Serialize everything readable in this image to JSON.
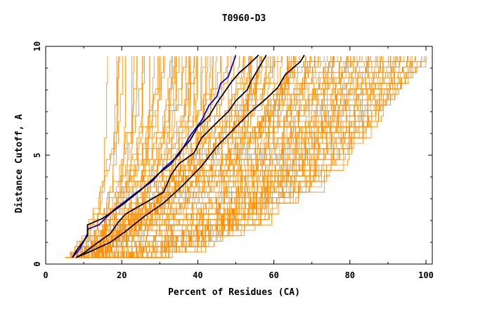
{
  "chart_data": {
    "type": "line",
    "title": "T0960-D3",
    "xlabel": "Percent of Residues (CA)",
    "ylabel": "Distance Cutoff, A",
    "xlim": [
      0,
      100
    ],
    "ylim": [
      0,
      10
    ],
    "x_ticks": [
      0,
      20,
      40,
      60,
      80,
      100
    ],
    "x_tick_labels": [
      "0",
      "20",
      "40",
      "60",
      "80",
      "100"
    ],
    "y_ticks": [
      0,
      5,
      10
    ],
    "y_tick_labels": [
      "0",
      "5",
      "10"
    ],
    "grid": false,
    "legend": "none",
    "colors": {
      "background_series": "#ff8c00",
      "highlight_blue": "#0000ff",
      "highlight_black": "#000000",
      "axis": "#000000"
    },
    "highlighted_series": [
      {
        "color": "#0000ff",
        "x": [
          7,
          9,
          11,
          11,
          14,
          18,
          24,
          28,
          31,
          35,
          36,
          38,
          41,
          43,
          45,
          46,
          48,
          49,
          50
        ],
        "y": [
          0.3,
          0.7,
          1.4,
          1.6,
          1.8,
          2.5,
          3.3,
          3.8,
          4.4,
          5.0,
          5.3,
          5.9,
          6.6,
          7.3,
          7.7,
          8.3,
          8.6,
          9.1,
          9.6
        ]
      },
      {
        "color": "#000000",
        "x": [
          7,
          8,
          11,
          11,
          15,
          20,
          25,
          30,
          33,
          35,
          38,
          40,
          43,
          45,
          47,
          49,
          51,
          53,
          56
        ],
        "y": [
          0.3,
          0.6,
          1.3,
          1.8,
          2.1,
          2.7,
          3.4,
          4.2,
          4.6,
          5.1,
          5.7,
          6.3,
          6.8,
          7.4,
          7.9,
          8.4,
          8.8,
          9.1,
          9.6
        ]
      },
      {
        "color": "#000000",
        "x": [
          8,
          10,
          13,
          17,
          19,
          21,
          26,
          31,
          33,
          35,
          39,
          41,
          45,
          48,
          50,
          53,
          54,
          56,
          58
        ],
        "y": [
          0.3,
          0.5,
          0.9,
          1.4,
          1.9,
          2.3,
          2.8,
          3.3,
          4.1,
          4.6,
          5.1,
          5.8,
          6.5,
          7.0,
          7.5,
          8.0,
          8.4,
          9.0,
          9.6
        ]
      },
      {
        "color": "#000000",
        "x": [
          8,
          12,
          17,
          21,
          26,
          31,
          36,
          41,
          45,
          50,
          54,
          58,
          61,
          63,
          65,
          67,
          68
        ],
        "y": [
          0.3,
          0.6,
          1.0,
          1.5,
          2.2,
          2.8,
          3.6,
          4.5,
          5.4,
          6.3,
          7.0,
          7.6,
          8.1,
          8.7,
          9.0,
          9.3,
          9.6
        ]
      }
    ]
  }
}
